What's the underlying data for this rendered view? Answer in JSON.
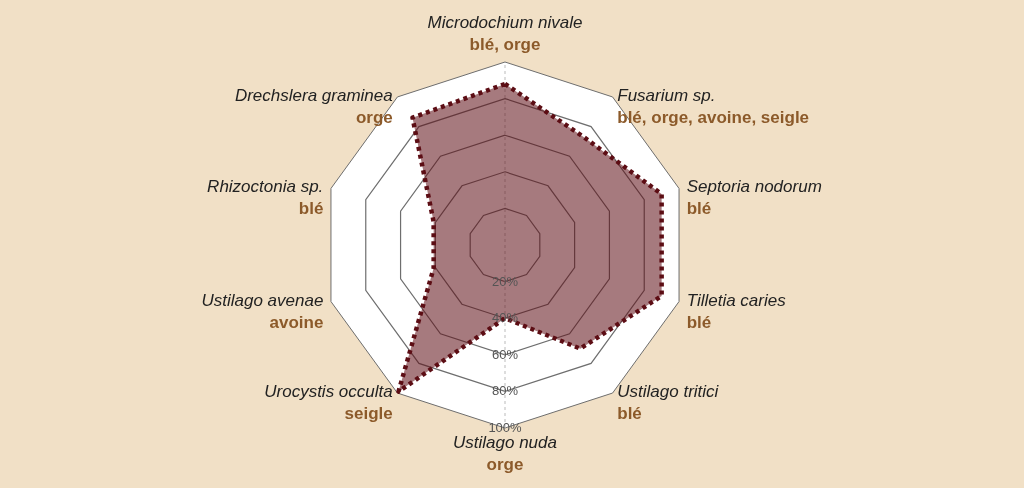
{
  "chart_data": {
    "type": "radar",
    "categories": [
      "Microdochium nivale",
      "Fusarium sp.",
      "Septoria nodorum",
      "Tilletia caries",
      "Ustilago tritici",
      "Ustilago nuda",
      "Urocystis occulta",
      "Ustilago avenae",
      "Rhizoctonia sp.",
      "Drechslera graminea"
    ],
    "annotations": [
      "blé, orge",
      "blé, orge, avoine, seigle",
      "blé",
      "blé",
      "blé",
      "orge",
      "seigle",
      "avoine",
      "blé",
      "orge"
    ],
    "series": [
      {
        "color": "#5c0d14",
        "values": [
          88,
          73,
          90,
          90,
          70,
          40,
          99,
          41,
          41,
          86
        ]
      }
    ],
    "ylim": [
      0,
      100
    ],
    "yticks": [
      {
        "value": 20,
        "label": "20%"
      },
      {
        "value": 40,
        "label": "40%"
      },
      {
        "value": 60,
        "label": "60%"
      },
      {
        "value": 80,
        "label": "80%"
      },
      {
        "value": 100,
        "label": "100%"
      }
    ],
    "grid": true,
    "line_style": "dotted"
  }
}
